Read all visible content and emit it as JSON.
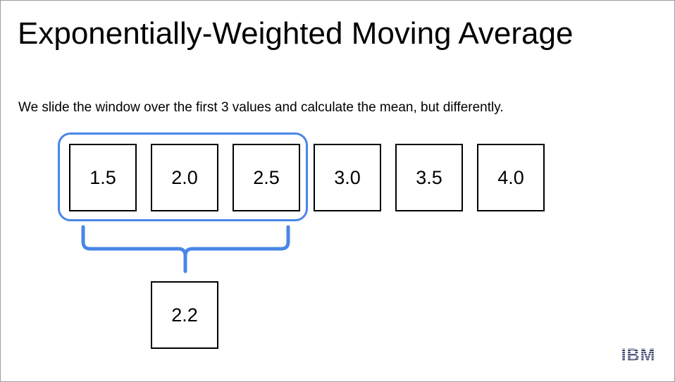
{
  "slide": {
    "title": "Exponentially-Weighted Moving Average",
    "description": "We slide the window over the first 3 values and calculate the mean, but differently.",
    "values": [
      "1.5",
      "2.0",
      "2.5",
      "3.0",
      "3.5",
      "4.0"
    ],
    "window_size": 3,
    "result": "2.2",
    "logo": "IBM",
    "colors": {
      "window_outline": "#4a86e8",
      "box_border": "#000000",
      "text": "#000000",
      "background": "#ffffff",
      "logo": "#1f2a5a"
    }
  }
}
